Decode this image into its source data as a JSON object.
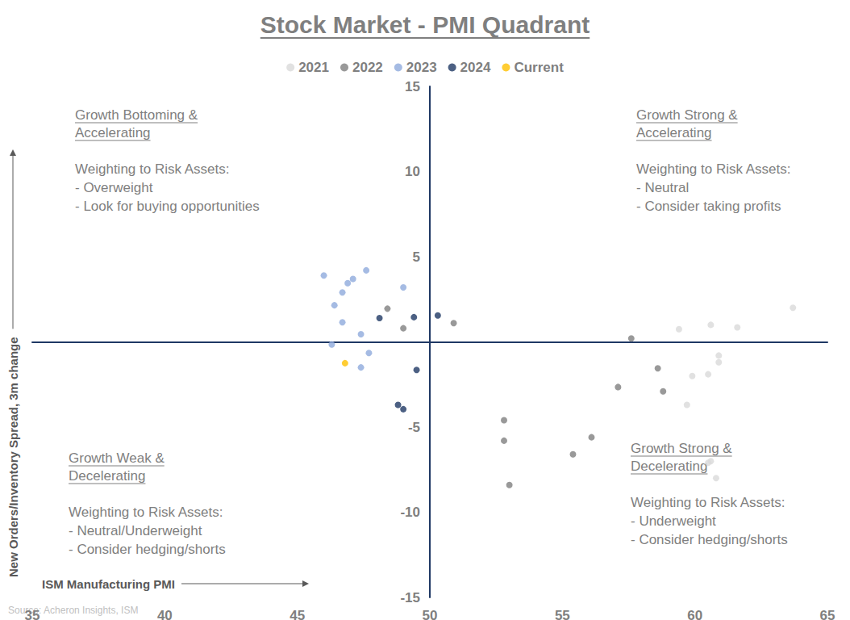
{
  "chart_data": {
    "type": "scatter",
    "title": "Stock Market - PMI Quadrant",
    "xlabel": "ISM Manufacturing PMI",
    "ylabel": "New Orders/Inventory Spread, 3m change",
    "source": "Source: Acheron Insights, ISM",
    "xlim": [
      35,
      65
    ],
    "xticks": [
      35,
      40,
      45,
      50,
      55,
      60,
      65
    ],
    "ylim": [
      -15,
      15
    ],
    "yticks": [
      -15,
      -10,
      -5,
      5,
      10,
      15
    ],
    "grid": false,
    "legend": "top",
    "marker": "circle",
    "series": [
      {
        "name": "2021",
        "color": "#d9d9d9",
        "x": [
          63.7,
          61.6,
          60.6,
          59.4,
          60.9,
          60.9,
          59.9,
          60.5,
          59.7,
          60.6,
          60.5,
          60.8
        ],
        "values": [
          2.0,
          0.85,
          1.0,
          0.75,
          -0.8,
          -1.2,
          -2.0,
          -1.9,
          -3.7,
          -7.0,
          -7.1,
          -8.0
        ]
      },
      {
        "name": "2022",
        "color": "#7f7f7f",
        "x": [
          50.9,
          48.4,
          49.0,
          57.6,
          58.6,
          58.8,
          57.1,
          52.8,
          52.8,
          53.0,
          56.1,
          55.4
        ],
        "values": [
          1.1,
          1.95,
          0.8,
          0.2,
          -1.55,
          -2.9,
          -2.65,
          -4.6,
          -5.8,
          -8.4,
          -5.6,
          -6.6
        ]
      },
      {
        "name": "2023",
        "color": "#8faadc",
        "x": [
          46.0,
          47.6,
          47.1,
          46.9,
          46.7,
          49.0,
          46.4,
          46.7,
          47.4,
          46.3,
          47.7,
          47.4
        ],
        "values": [
          3.9,
          4.2,
          3.7,
          3.45,
          2.9,
          3.2,
          2.15,
          1.15,
          0.45,
          -0.15,
          -0.65,
          -1.5
        ]
      },
      {
        "name": "2024",
        "color": "#1f3864",
        "x": [
          48.1,
          49.4,
          50.3,
          49.5,
          48.8,
          49.0
        ],
        "values": [
          1.4,
          1.45,
          1.55,
          -1.65,
          -3.7,
          -3.95
        ]
      },
      {
        "name": "Current",
        "color": "#ffc000",
        "x": [
          46.8
        ],
        "values": [
          -1.25
        ]
      }
    ],
    "annotations": [
      {
        "title": [
          "Growth Bottoming &",
          "Accelerating"
        ],
        "lines": [
          "Weighting to Risk Assets:",
          "- Overweight",
          "- Look for buying opportunities"
        ]
      },
      {
        "title": [
          "Growth Strong &",
          "Accelerating"
        ],
        "lines": [
          "Weighting to Risk Assets:",
          "- Neutral",
          "- Consider taking profits"
        ]
      },
      {
        "title": [
          "Growth Weak &",
          "Decelerating"
        ],
        "lines": [
          "Weighting to Risk Assets:",
          "- Neutral/Underweight",
          "- Consider hedging/shorts"
        ]
      },
      {
        "title": [
          "Growth Strong &",
          "Decelerating"
        ],
        "lines": [
          "Weighting to Risk Assets:",
          "- Underweight",
          "- Consider hedging/shorts"
        ]
      }
    ]
  }
}
